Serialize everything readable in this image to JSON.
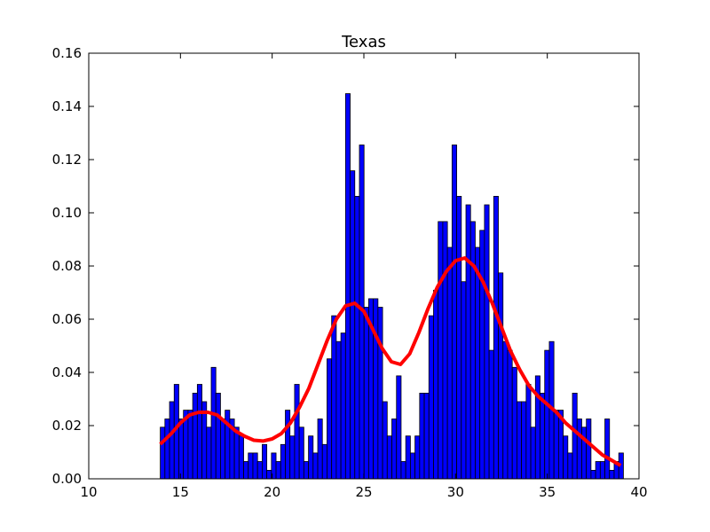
{
  "chart_data": {
    "type": "bar",
    "title": "Texas",
    "xlabel": "",
    "ylabel": "",
    "xlim": [
      10,
      40
    ],
    "ylim": [
      0,
      0.16
    ],
    "xticks": [
      10,
      15,
      20,
      25,
      30,
      35,
      40
    ],
    "yticks": [
      0.0,
      0.02,
      0.04,
      0.06,
      0.08,
      0.1,
      0.12,
      0.14,
      0.16
    ],
    "xtick_labels": [
      "10",
      "15",
      "20",
      "25",
      "30",
      "35",
      "40"
    ],
    "ytick_labels": [
      "0.00",
      "0.02",
      "0.04",
      "0.06",
      "0.08",
      "0.10",
      "0.12",
      "0.14",
      "0.16"
    ],
    "grid": false,
    "histogram": {
      "bin_start": 13.9,
      "bin_width": 0.2525,
      "values": [
        0.0194,
        0.0225,
        0.029,
        0.0355,
        0.0225,
        0.0258,
        0.0258,
        0.0322,
        0.0355,
        0.029,
        0.0194,
        0.0419,
        0.0322,
        0.0225,
        0.0258,
        0.0225,
        0.0194,
        0.0161,
        0.0065,
        0.0097,
        0.0097,
        0.0065,
        0.0129,
        0.0032,
        0.0097,
        0.0065,
        0.0129,
        0.0258,
        0.0161,
        0.0355,
        0.0194,
        0.0065,
        0.0161,
        0.0097,
        0.0225,
        0.0129,
        0.0451,
        0.0613,
        0.0516,
        0.0548,
        0.1448,
        0.1158,
        0.1062,
        0.1255,
        0.0645,
        0.0677,
        0.0677,
        0.0645,
        0.029,
        0.0161,
        0.0225,
        0.0387,
        0.0065,
        0.0161,
        0.0097,
        0.0161,
        0.0322,
        0.0322,
        0.0613,
        0.0709,
        0.0967,
        0.0967,
        0.087,
        0.1255,
        0.1062,
        0.0741,
        0.103,
        0.0967,
        0.087,
        0.0934,
        0.103,
        0.0483,
        0.1062,
        0.0774,
        0.0516,
        0.0483,
        0.0419,
        0.029,
        0.029,
        0.0355,
        0.0194,
        0.0387,
        0.0322,
        0.0483,
        0.0516,
        0.0258,
        0.0258,
        0.0161,
        0.0097,
        0.0322,
        0.0225,
        0.0194,
        0.0225,
        0.0032,
        0.0065,
        0.0065,
        0.0225,
        0.0032,
        0.0065,
        0.0097
      ]
    },
    "density_curve": {
      "x": [
        13.9,
        14.5,
        15.0,
        15.5,
        16.0,
        16.5,
        17.0,
        17.5,
        18.0,
        18.5,
        19.0,
        19.5,
        20.0,
        20.5,
        21.0,
        21.5,
        22.0,
        22.5,
        23.0,
        23.5,
        24.0,
        24.5,
        25.0,
        25.5,
        26.0,
        26.5,
        27.0,
        27.5,
        28.0,
        28.5,
        29.0,
        29.5,
        30.0,
        30.5,
        31.0,
        31.5,
        32.0,
        32.5,
        33.0,
        33.5,
        34.0,
        34.5,
        35.0,
        35.5,
        36.0,
        36.5,
        37.0,
        37.5,
        38.0,
        38.5,
        39.0
      ],
      "y": [
        0.013,
        0.017,
        0.021,
        0.024,
        0.025,
        0.025,
        0.024,
        0.021,
        0.018,
        0.016,
        0.0145,
        0.0142,
        0.015,
        0.017,
        0.021,
        0.027,
        0.034,
        0.043,
        0.052,
        0.06,
        0.065,
        0.066,
        0.063,
        0.056,
        0.049,
        0.044,
        0.043,
        0.047,
        0.055,
        0.064,
        0.072,
        0.078,
        0.082,
        0.083,
        0.08,
        0.074,
        0.066,
        0.057,
        0.048,
        0.041,
        0.035,
        0.031,
        0.028,
        0.025,
        0.021,
        0.018,
        0.015,
        0.012,
        0.009,
        0.007,
        0.005
      ],
      "color": "#ff0000"
    },
    "bar_color": "#0000ff"
  }
}
